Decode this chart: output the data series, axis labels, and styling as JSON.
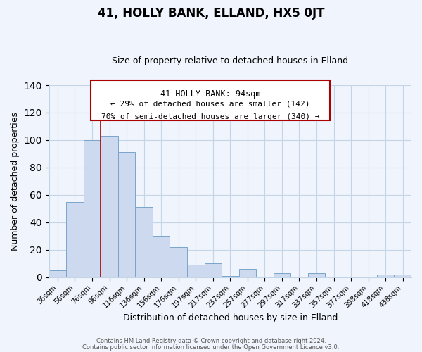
{
  "title": "41, HOLLY BANK, ELLAND, HX5 0JT",
  "subtitle": "Size of property relative to detached houses in Elland",
  "xlabel": "Distribution of detached houses by size in Elland",
  "ylabel": "Number of detached properties",
  "categories": [
    "36sqm",
    "56sqm",
    "76sqm",
    "96sqm",
    "116sqm",
    "136sqm",
    "156sqm",
    "176sqm",
    "197sqm",
    "217sqm",
    "237sqm",
    "257sqm",
    "277sqm",
    "297sqm",
    "317sqm",
    "337sqm",
    "357sqm",
    "377sqm",
    "398sqm",
    "418sqm",
    "438sqm"
  ],
  "values": [
    5,
    55,
    100,
    103,
    91,
    51,
    30,
    22,
    9,
    10,
    1,
    6,
    0,
    3,
    0,
    3,
    0,
    0,
    0,
    2,
    2
  ],
  "bar_color": "#ccd9ee",
  "bar_edge_color": "#7aa4cc",
  "ylim": [
    0,
    140
  ],
  "yticks": [
    0,
    20,
    40,
    60,
    80,
    100,
    120,
    140
  ],
  "vline_x_index": 2,
  "vline_color": "#aa0000",
  "annotation_title": "41 HOLLY BANK: 94sqm",
  "annotation_line1": "← 29% of detached houses are smaller (142)",
  "annotation_line2": "70% of semi-detached houses are larger (340) →",
  "footer1": "Contains HM Land Registry data © Crown copyright and database right 2024.",
  "footer2": "Contains public sector information licensed under the Open Government Licence v3.0.",
  "bg_color": "#f0f4fc",
  "grid_color": "#c5d5e8",
  "title_fontsize": 12,
  "subtitle_fontsize": 9,
  "xlabel_fontsize": 9,
  "ylabel_fontsize": 9
}
